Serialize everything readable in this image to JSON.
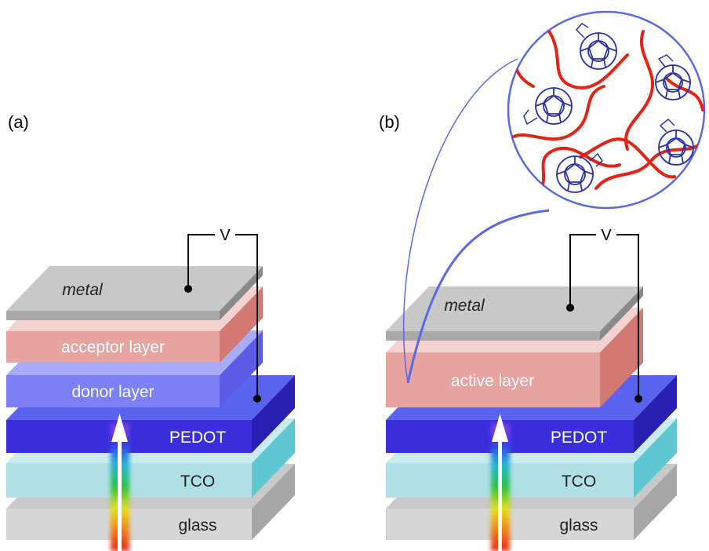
{
  "panel_a": {
    "label": "(a)",
    "voltage": "V",
    "layers": {
      "metal": "metal",
      "acceptor": "acceptor layer",
      "donor": "donor layer",
      "pedot": "PEDOT",
      "tco": "TCO",
      "glass": "glass"
    }
  },
  "panel_b": {
    "label": "(b)",
    "voltage": "V",
    "layers": {
      "metal": "metal",
      "active": "active layer",
      "pedot": "PEDOT",
      "tco": "TCO",
      "glass": "glass"
    }
  },
  "colors": {
    "glass_front": "#d6d6d6",
    "glass_side": "#a6a6a6",
    "glass_top": "#c9c9c9",
    "tco_front": "#b0e0e6",
    "tco_side": "#5ec7d1",
    "tco_top": "#c8ecf0",
    "pedot_front": "#3a2ddc",
    "pedot_side": "#2a1fb3",
    "pedot_top": "#5a63f0",
    "donor_front": "#7d7ff7",
    "donor_side": "#5a5ce6",
    "donor_top": "#a9aaf9",
    "acceptor_front": "#e7a3a0",
    "acceptor_side": "#d37873",
    "acceptor_top": "#f3d2d0",
    "metal_front": "#a9a9a9",
    "metal_side": "#8a8a8a",
    "metal_top": "#c8c8c8",
    "polymer": "#e52315",
    "fullerene": "#2a33a8",
    "bubble_outline": "#5a6ae6"
  }
}
